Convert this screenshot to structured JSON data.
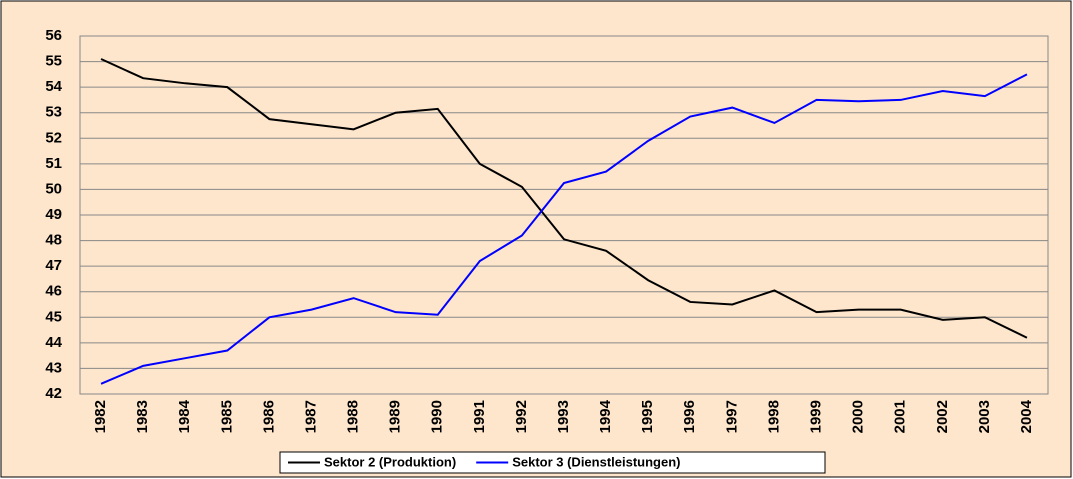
{
  "chart_data": {
    "type": "line",
    "categories": [
      "1982",
      "1983",
      "1984",
      "1985",
      "1986",
      "1987",
      "1988",
      "1989",
      "1990",
      "1991",
      "1992",
      "1993",
      "1994",
      "1995",
      "1996",
      "1997",
      "1998",
      "1999",
      "2000",
      "2001",
      "2002",
      "2003",
      "2004"
    ],
    "series": [
      {
        "name": "Sektor 2 (Produktion)",
        "color": "#000000",
        "values": [
          55.1,
          54.35,
          54.15,
          54.0,
          52.75,
          52.55,
          52.35,
          53.0,
          53.15,
          51.0,
          50.1,
          48.05,
          47.6,
          46.45,
          45.6,
          45.5,
          46.05,
          45.2,
          45.3,
          45.3,
          44.9,
          45.0,
          44.2
        ]
      },
      {
        "name": "Sektor 3 (Dienstleistungen)",
        "color": "#0000ff",
        "values": [
          42.4,
          43.1,
          43.4,
          43.7,
          45.0,
          45.3,
          45.75,
          45.2,
          45.1,
          47.2,
          48.2,
          50.25,
          50.7,
          51.9,
          52.85,
          53.2,
          52.6,
          53.5,
          53.45,
          53.5,
          53.85,
          53.65,
          54.5
        ]
      }
    ],
    "ylim": [
      42,
      56
    ],
    "yticks": [
      42,
      43,
      44,
      45,
      46,
      47,
      48,
      49,
      50,
      51,
      52,
      53,
      54,
      55,
      56
    ],
    "grid": true,
    "legend": "bottom"
  }
}
